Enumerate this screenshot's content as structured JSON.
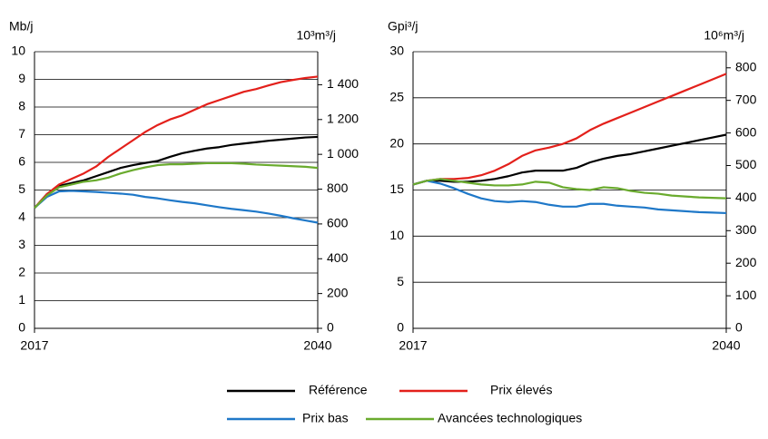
{
  "chart_data": [
    {
      "type": "line",
      "y_label": "Mb/j",
      "y2_label": "10³m³/j",
      "grid": true,
      "x": [
        2017,
        2018,
        2019,
        2020,
        2021,
        2022,
        2023,
        2024,
        2025,
        2026,
        2027,
        2028,
        2029,
        2030,
        2031,
        2032,
        2033,
        2034,
        2035,
        2036,
        2037,
        2038,
        2039,
        2040
      ],
      "xlim": [
        2017,
        2040
      ],
      "xticks": [
        2017,
        2040
      ],
      "ylim": [
        0,
        10
      ],
      "yticks": [
        0,
        1,
        2,
        3,
        4,
        5,
        6,
        7,
        8,
        9,
        10
      ],
      "y2lim": [
        0,
        1589.87
      ],
      "y2ticks": [
        0,
        200,
        400,
        600,
        800,
        {
          "value": 1000,
          "label": "1 000"
        },
        {
          "value": 1200,
          "label": "1 200"
        },
        {
          "value": 1400,
          "label": "1 400"
        }
      ],
      "series": [
        {
          "name": "Référence",
          "color": "#000000",
          "values": [
            4.35,
            4.85,
            5.15,
            5.25,
            5.35,
            5.5,
            5.65,
            5.8,
            5.9,
            5.98,
            6.05,
            6.2,
            6.33,
            6.42,
            6.5,
            6.55,
            6.63,
            6.68,
            6.73,
            6.78,
            6.82,
            6.86,
            6.9,
            6.92
          ]
        },
        {
          "name": "Prix élevés",
          "color": "#e3201b",
          "values": [
            4.35,
            4.85,
            5.2,
            5.4,
            5.6,
            5.85,
            6.2,
            6.5,
            6.8,
            7.1,
            7.35,
            7.55,
            7.7,
            7.9,
            8.1,
            8.25,
            8.4,
            8.55,
            8.65,
            8.78,
            8.9,
            8.98,
            9.05,
            9.1
          ]
        },
        {
          "name": "Prix bas",
          "color": "#1f78c8",
          "values": [
            4.35,
            4.75,
            4.95,
            4.97,
            4.95,
            4.93,
            4.9,
            4.87,
            4.83,
            4.75,
            4.7,
            4.63,
            4.57,
            4.52,
            4.45,
            4.38,
            4.32,
            4.27,
            4.22,
            4.15,
            4.07,
            3.98,
            3.9,
            3.82
          ]
        },
        {
          "name": "Avancées technologiques",
          "color": "#6aab2e",
          "values": [
            4.35,
            4.8,
            5.1,
            5.2,
            5.3,
            5.35,
            5.45,
            5.6,
            5.72,
            5.82,
            5.9,
            5.93,
            5.93,
            5.95,
            5.97,
            5.97,
            5.97,
            5.95,
            5.92,
            5.9,
            5.88,
            5.86,
            5.84,
            5.8
          ]
        }
      ]
    },
    {
      "type": "line",
      "y_label": "Gpi³/j",
      "y2_label": "10⁶m³/j",
      "grid": true,
      "x": [
        2017,
        2018,
        2019,
        2020,
        2021,
        2022,
        2023,
        2024,
        2025,
        2026,
        2027,
        2028,
        2029,
        2030,
        2031,
        2032,
        2033,
        2034,
        2035,
        2036,
        2037,
        2038,
        2039,
        2040
      ],
      "xlim": [
        2017,
        2040
      ],
      "xticks": [
        2017,
        2040
      ],
      "ylim": [
        0,
        30
      ],
      "yticks": [
        0,
        5,
        10,
        15,
        20,
        25,
        30
      ],
      "y2lim": [
        0,
        849.5
      ],
      "y2ticks": [
        0,
        100,
        200,
        300,
        400,
        500,
        600,
        700,
        800
      ],
      "series": [
        {
          "name": "Référence",
          "color": "#000000",
          "values": [
            15.6,
            16.0,
            16.0,
            15.9,
            15.9,
            16.0,
            16.2,
            16.5,
            16.9,
            17.1,
            17.1,
            17.1,
            17.4,
            18.0,
            18.4,
            18.7,
            18.9,
            19.2,
            19.5,
            19.8,
            20.1,
            20.4,
            20.7,
            21.0
          ]
        },
        {
          "name": "Prix élevés",
          "color": "#e3201b",
          "values": [
            15.6,
            16.0,
            16.2,
            16.2,
            16.3,
            16.6,
            17.1,
            17.8,
            18.7,
            19.3,
            19.6,
            20.0,
            20.6,
            21.5,
            22.2,
            22.8,
            23.4,
            24.0,
            24.6,
            25.2,
            25.8,
            26.4,
            27.0,
            27.6
          ]
        },
        {
          "name": "Prix bas",
          "color": "#1f78c8",
          "values": [
            15.6,
            16.0,
            15.7,
            15.2,
            14.6,
            14.1,
            13.8,
            13.7,
            13.8,
            13.7,
            13.4,
            13.2,
            13.2,
            13.5,
            13.5,
            13.3,
            13.2,
            13.1,
            12.9,
            12.8,
            12.7,
            12.6,
            12.55,
            12.5
          ]
        },
        {
          "name": "Avancées technologiques",
          "color": "#6aab2e",
          "values": [
            15.6,
            16.0,
            16.2,
            16.0,
            15.8,
            15.6,
            15.5,
            15.5,
            15.6,
            15.9,
            15.8,
            15.3,
            15.1,
            15.0,
            15.3,
            15.2,
            14.9,
            14.7,
            14.6,
            14.4,
            14.3,
            14.2,
            14.15,
            14.1
          ]
        }
      ]
    }
  ]
}
